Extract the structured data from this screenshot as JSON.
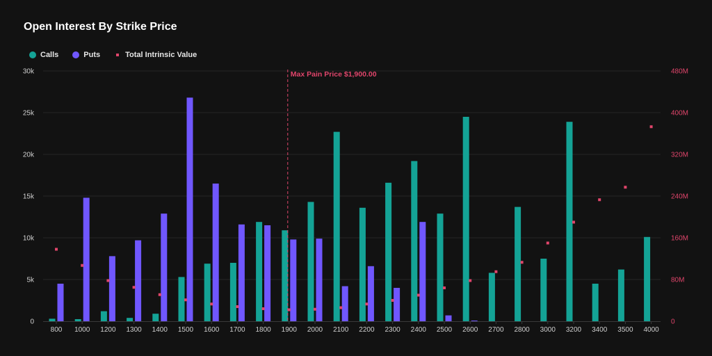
{
  "title": "Open Interest By Strike Price",
  "legend": {
    "calls": "Calls",
    "puts": "Puts",
    "intrinsic": "Total Intrinsic Value"
  },
  "colors": {
    "calls": "#14a396",
    "puts": "#7057ff",
    "intrinsic": "#e0456b",
    "background": "#121212"
  },
  "chart_data": {
    "type": "bar",
    "title": "Open Interest By Strike Price",
    "categories": [
      "800",
      "1000",
      "1200",
      "1300",
      "1400",
      "1500",
      "1600",
      "1700",
      "1800",
      "1900",
      "2000",
      "2100",
      "2200",
      "2300",
      "2400",
      "2500",
      "2600",
      "2700",
      "2800",
      "3000",
      "3200",
      "3400",
      "3500",
      "4000"
    ],
    "series": [
      {
        "name": "Calls",
        "axis": "left",
        "values": [
          300,
          250,
          1200,
          400,
          900,
          5300,
          6900,
          7000,
          11900,
          10900,
          14300,
          22700,
          13600,
          16600,
          19200,
          12900,
          24500,
          5800,
          13700,
          7500,
          23900,
          4500,
          6200,
          10100
        ]
      },
      {
        "name": "Puts",
        "axis": "left",
        "values": [
          4500,
          14800,
          7800,
          9700,
          12900,
          26800,
          16500,
          11600,
          11500,
          9800,
          9900,
          4200,
          6600,
          4000,
          11900,
          700,
          80,
          0,
          0,
          0,
          0,
          0,
          0,
          0
        ]
      },
      {
        "name": "Total Intrinsic Value",
        "axis": "right",
        "type": "scatter",
        "values": [
          138,
          107,
          78,
          65,
          51,
          41,
          33,
          28,
          24,
          22,
          23,
          26,
          33,
          40,
          50,
          64,
          78,
          95,
          113,
          150,
          190,
          233,
          257,
          373
        ]
      }
    ],
    "y_left": {
      "min": 0,
      "max": 30000,
      "ticks": [
        "0",
        "5k",
        "10k",
        "15k",
        "20k",
        "25k",
        "30k"
      ]
    },
    "y_right": {
      "min": 0,
      "max": 480,
      "unit": "M",
      "ticks": [
        "0",
        "80M",
        "160M",
        "240M",
        "320M",
        "400M",
        "480M"
      ]
    },
    "annotation": {
      "label": "Max Pain Price $1,900.00",
      "category": "1900"
    },
    "legend_position": "top-left",
    "grid": true
  }
}
